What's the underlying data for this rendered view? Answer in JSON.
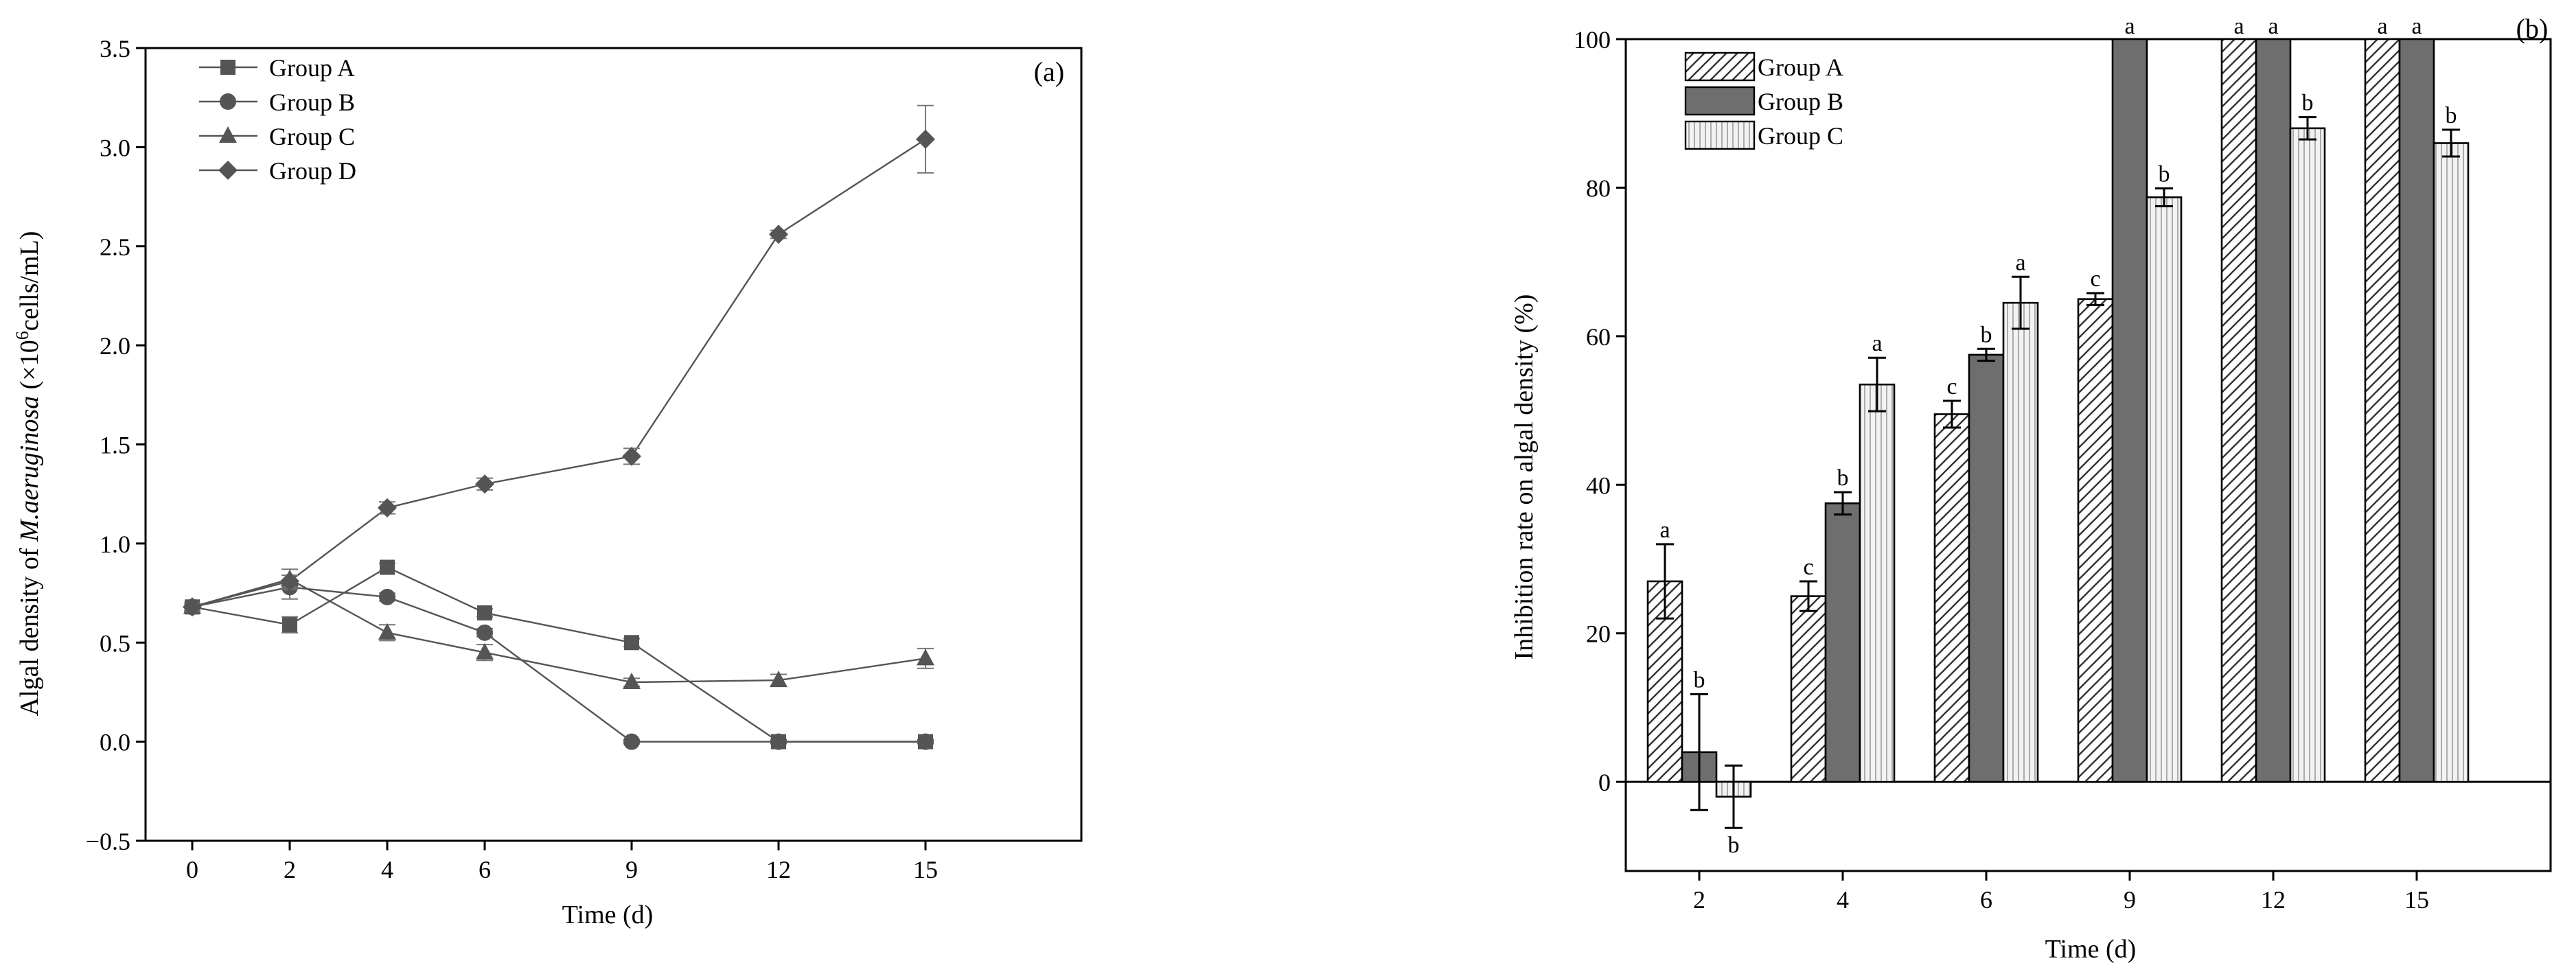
{
  "chart_data": [
    {
      "type": "line",
      "panel_label": "(a)",
      "xlabel": "Time (d)",
      "ylabel_prefix": "Algal density of ",
      "ylabel_species": "M.aeruginosa",
      "ylabel_suffix": " (×10",
      "ylabel_exp": "6",
      "ylabel_unit": "cells/mL)",
      "x_ticks": [
        "0",
        "2",
        "4",
        "6",
        "9",
        "12",
        "15"
      ],
      "y_ticks": [
        "−0.5",
        "0.0",
        "0.5",
        "1.0",
        "1.5",
        "2.0",
        "2.5",
        "3.0",
        "3.5"
      ],
      "ylim": [
        -0.5,
        3.5
      ],
      "legend_position": "top-left",
      "series": [
        {
          "name": "Group A",
          "marker": "square",
          "x": [
            0,
            2,
            4,
            6,
            9,
            12,
            15
          ],
          "y": [
            0.68,
            0.59,
            0.88,
            0.65,
            0.5,
            0.0,
            0.0
          ],
          "err": [
            0.02,
            0.04,
            0.02,
            0.02,
            0.02,
            0.01,
            0.01
          ]
        },
        {
          "name": "Group B",
          "marker": "circle",
          "x": [
            0,
            2,
            4,
            6,
            9,
            12,
            15
          ],
          "y": [
            0.68,
            0.78,
            0.73,
            0.55,
            0.0,
            0.0,
            0.0
          ],
          "err": [
            0.02,
            0.06,
            0.02,
            0.02,
            0.01,
            0.01,
            0.01
          ]
        },
        {
          "name": "Group C",
          "marker": "triangle",
          "x": [
            0,
            2,
            4,
            6,
            9,
            12,
            15
          ],
          "y": [
            0.68,
            0.82,
            0.55,
            0.45,
            0.3,
            0.31,
            0.42
          ],
          "err": [
            0.02,
            0.05,
            0.04,
            0.04,
            0.02,
            0.03,
            0.05
          ]
        },
        {
          "name": "Group D",
          "marker": "diamond",
          "x": [
            0,
            2,
            4,
            6,
            9,
            12,
            15
          ],
          "y": [
            0.68,
            0.81,
            1.18,
            1.3,
            1.44,
            2.56,
            3.04
          ],
          "err": [
            0.02,
            0.03,
            0.03,
            0.03,
            0.04,
            0.02,
            0.17
          ]
        }
      ]
    },
    {
      "type": "bar",
      "panel_label": "(b)",
      "xlabel": "Time (d)",
      "ylabel": "Inhibition rate on algal density (%)",
      "categories": [
        "2",
        "4",
        "6",
        "9",
        "12",
        "15"
      ],
      "y_ticks": [
        "0",
        "20",
        "40",
        "60",
        "80",
        "100"
      ],
      "ylim": [
        -12,
        100
      ],
      "legend_position": "top-left",
      "series": [
        {
          "name": "Group A",
          "pattern": "diagonal-hatch",
          "values": [
            27,
            25,
            49.5,
            65,
            100,
            100
          ],
          "err": [
            5,
            2,
            1.8,
            0.8,
            0,
            0
          ],
          "letters": [
            "a",
            "c",
            "c",
            "c",
            "a",
            "a"
          ]
        },
        {
          "name": "Group B",
          "pattern": "dark-gray",
          "values": [
            4,
            37.5,
            57.5,
            100,
            100,
            100
          ],
          "err": [
            7.8,
            1.5,
            0.8,
            0,
            0,
            0
          ],
          "letters": [
            "b",
            "b",
            "b",
            "a",
            "a",
            "a"
          ]
        },
        {
          "name": "Group C",
          "pattern": "vertical-lines",
          "values": [
            -2,
            53.5,
            64.5,
            78.7,
            88,
            86
          ],
          "err": [
            4.2,
            3.6,
            3.5,
            1.2,
            1.5,
            1.8
          ],
          "letters": [
            "b",
            "a",
            "a",
            "b",
            "b",
            "b"
          ]
        }
      ]
    }
  ]
}
